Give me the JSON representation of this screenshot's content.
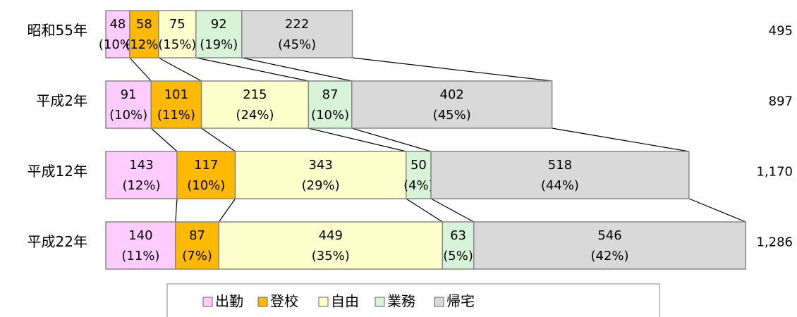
{
  "chart_data": {
    "type": "stacked-bar-horizontal",
    "categories": [
      "昭和55年",
      "平成2年",
      "平成12年",
      "平成22年"
    ],
    "series": [
      {
        "name": "出勤",
        "color": "#ffccff",
        "values": [
          48,
          91,
          143,
          140
        ],
        "share_labels": [
          "(10%)",
          "(10%)",
          "(12%)",
          "(11%)"
        ]
      },
      {
        "name": "登校",
        "color": "#ffb900",
        "values": [
          58,
          101,
          117,
          87
        ],
        "share_labels": [
          "(12%)",
          "(11%)",
          "(10%)",
          "(7%)"
        ]
      },
      {
        "name": "自由",
        "color": "#ffffcc",
        "values": [
          75,
          215,
          343,
          449
        ],
        "share_labels": [
          "(15%)",
          "(24%)",
          "(29%)",
          "(35%)"
        ]
      },
      {
        "name": "業務",
        "color": "#d8f4d8",
        "values": [
          92,
          87,
          50,
          63
        ],
        "share_labels": [
          "(19%)",
          "(10%)",
          "(4%)",
          "(5%)"
        ]
      },
      {
        "name": "帰宅",
        "color": "#d9d9d9",
        "values": [
          222,
          402,
          518,
          546
        ],
        "share_labels": [
          "(45%)",
          "(45%)",
          "(44%)",
          "(42%)"
        ]
      }
    ],
    "totals": [
      495,
      897,
      1170,
      1286
    ],
    "total_labels": [
      "495",
      "897",
      "1,170",
      "1,286"
    ],
    "legend": "bottom"
  }
}
